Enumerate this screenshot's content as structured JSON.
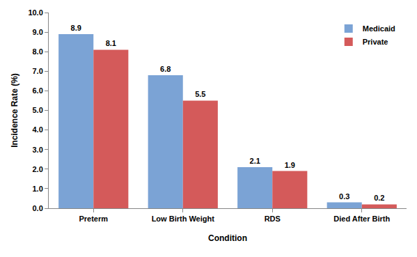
{
  "chart_data": {
    "type": "bar",
    "x_label": "Condition",
    "y_label": "Incidence Rate (%)",
    "categories": [
      "Preterm",
      "Low Birth Weight",
      "RDS",
      "Died After Birth"
    ],
    "series": [
      {
        "name": "Medicaid",
        "color": "#7ba3d5",
        "values": [
          8.9,
          6.8,
          2.1,
          0.3
        ]
      },
      {
        "name": "Private",
        "color": "#d45a5a",
        "values": [
          8.1,
          5.5,
          1.9,
          0.2
        ]
      }
    ],
    "ylim": [
      0,
      10
    ],
    "yticks": [
      {
        "value": 0,
        "label": "0.0"
      },
      {
        "value": 1,
        "label": "1.0"
      },
      {
        "value": 2,
        "label": "2.0"
      },
      {
        "value": 3,
        "label": "3.0"
      },
      {
        "value": 4,
        "label": "4.0"
      },
      {
        "value": 5,
        "label": "5.0"
      },
      {
        "value": 6,
        "label": "6.0"
      },
      {
        "value": 7,
        "label": "7.0"
      },
      {
        "value": 8,
        "label": "8.0"
      },
      {
        "value": 9,
        "label": "9.0"
      },
      {
        "value": 10,
        "label": "10.0"
      }
    ],
    "grid": false,
    "legend": "top right",
    "data_labels": true
  }
}
